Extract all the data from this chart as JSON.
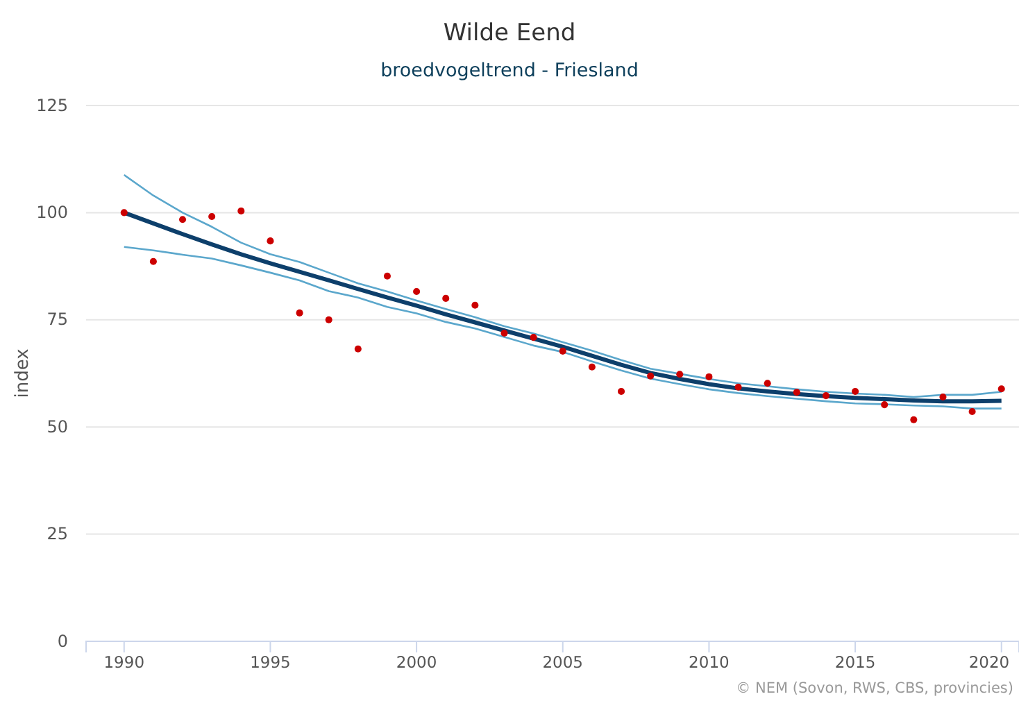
{
  "chart_data": {
    "type": "line",
    "title": "Wilde Eend",
    "subtitle": "broedvogeltrend - Friesland",
    "ylabel": "index",
    "annotations": [
      "© NEM (Sovon, RWS, CBS, provincies)"
    ],
    "xlim": [
      1988.7,
      2020.6
    ],
    "xticks": [
      1990,
      1995,
      2000,
      2005,
      2010,
      2015,
      2020
    ],
    "ylim": [
      0,
      125
    ],
    "yticks": [
      0,
      25,
      50,
      75,
      100,
      125
    ],
    "grid": "y",
    "x": [
      1990,
      1991,
      1992,
      1993,
      1994,
      1995,
      1996,
      1997,
      1998,
      1999,
      2000,
      2001,
      2002,
      2003,
      2004,
      2005,
      2006,
      2007,
      2008,
      2009,
      2010,
      2011,
      2012,
      2013,
      2014,
      2015,
      2016,
      2017,
      2018,
      2019,
      2020
    ],
    "series": [
      {
        "color": "#5ba7cc",
        "values": [
          108.8,
          104,
          100,
          96.7,
          93,
          90.3,
          88.5,
          86,
          83.5,
          81.6,
          79.5,
          77.5,
          75.6,
          73.5,
          71.8,
          69.8,
          67.8,
          65.6,
          63.6,
          62.4,
          61.2,
          60.2,
          59.5,
          58.8,
          58.2,
          57.8,
          57.5,
          57,
          57.5,
          57.5,
          58.2
        ]
      },
      {
        "color": "#5ba7cc",
        "values": [
          92,
          91.2,
          90.2,
          89.3,
          87.7,
          86,
          84.2,
          81.7,
          80.2,
          78,
          76.5,
          74.5,
          73,
          71,
          69,
          67.5,
          65.3,
          63.2,
          61.3,
          60,
          58.8,
          57.9,
          57.2,
          56.6,
          56,
          55.5,
          55.3,
          55,
          54.8,
          54.3,
          54.3
        ]
      },
      {
        "color": "#0d3f6b",
        "values": [
          100,
          97.5,
          95,
          92.6,
          90.3,
          88.2,
          86.2,
          84.2,
          82.2,
          80.2,
          78.3,
          76.3,
          74.4,
          72.5,
          70.6,
          68.7,
          66.6,
          64.5,
          62.6,
          61.2,
          60,
          59,
          58.3,
          57.7,
          57.2,
          56.8,
          56.5,
          56.2,
          56,
          56,
          56.1
        ]
      },
      {
        "type": "scatter",
        "color": "#cc0000",
        "marker": "circle",
        "values": [
          100,
          88.6,
          98.4,
          99.1,
          100.4,
          93.4,
          76.6,
          75,
          68.2,
          85.2,
          81.6,
          80,
          78.4,
          71.9,
          70.9,
          67.7,
          64,
          58.3,
          61.9,
          62.3,
          61.7,
          59.3,
          60.2,
          58.1,
          57.3,
          58.3,
          55.2,
          51.7,
          57,
          53.6,
          58.9
        ]
      }
    ]
  }
}
